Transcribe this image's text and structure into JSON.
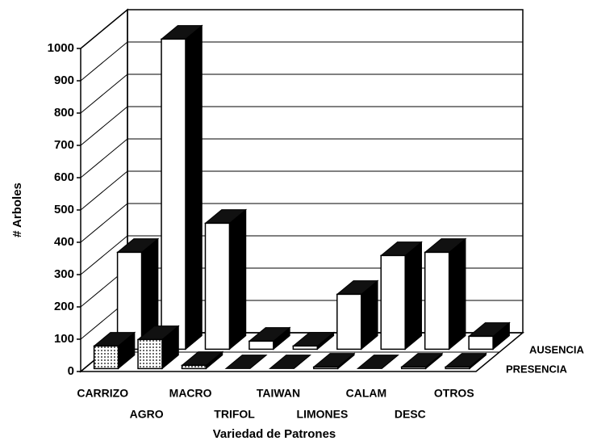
{
  "chart_data": {
    "type": "bar3d",
    "y_label": "# Arboles",
    "x_label": "Variedad de Patrones",
    "categories": [
      "CARRIZO",
      "AGRO",
      "MACRO",
      "TRIFOL",
      "TAIWAN",
      "LIMONES",
      "CALAM",
      "DESC",
      "OTROS"
    ],
    "series": [
      {
        "name": "PRESENCIA",
        "color": "#f4f4f4",
        "values": [
          70,
          90,
          10,
          0,
          0,
          5,
          0,
          5,
          5
        ]
      },
      {
        "name": "AUSENCIA",
        "color": "#ffffff",
        "values": [
          300,
          960,
          390,
          25,
          10,
          170,
          290,
          300,
          40
        ]
      }
    ],
    "ylim": [
      0,
      1000
    ],
    "yticks": [
      0,
      100,
      200,
      300,
      400,
      500,
      600,
      700,
      800,
      900,
      1000
    ],
    "grid": true
  }
}
